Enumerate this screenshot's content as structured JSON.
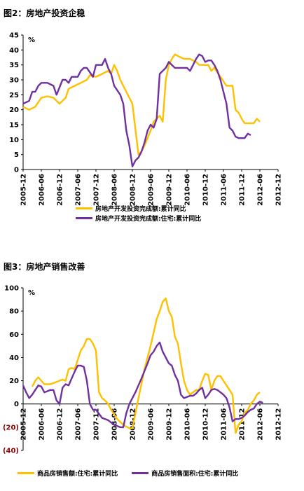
{
  "chart_data": [
    {
      "type": "line",
      "title": "图2：房地产投资企稳",
      "unit": "%",
      "ylim": [
        0,
        45
      ],
      "yticks": [
        "0",
        "5",
        "10",
        "15",
        "20",
        "25",
        "30",
        "35",
        "40",
        "45"
      ],
      "xticks": [
        "2005-12",
        "2006-06",
        "2006-12",
        "2007-06",
        "2007-12",
        "2008-06",
        "2008-12",
        "2009-06",
        "2009-12",
        "2010-06",
        "2010-12",
        "2011-06",
        "2011-12",
        "2012-06",
        "2012-12"
      ],
      "x_range": [
        0,
        84
      ],
      "legend_placement": "bottom",
      "series": [
        {
          "name": "房地产开发投资完成额:累计同比",
          "color": "#FFC000",
          "points": [
            [
              0,
              21
            ],
            [
              2,
              20
            ],
            [
              4,
              21
            ],
            [
              6,
              24
            ],
            [
              8,
              24.5
            ],
            [
              10,
              24
            ],
            [
              12,
              22
            ],
            [
              14,
              24
            ],
            [
              15,
              27
            ],
            [
              17,
              28
            ],
            [
              19,
              29
            ],
            [
              21,
              30
            ],
            [
              22,
              31.5
            ],
            [
              24,
              31
            ],
            [
              26,
              32
            ],
            [
              28,
              33
            ],
            [
              29,
              32
            ],
            [
              30,
              35
            ],
            [
              31,
              33
            ],
            [
              32,
              30
            ],
            [
              34,
              26
            ],
            [
              35,
              24
            ],
            [
              36,
              22
            ],
            [
              38,
              5
            ],
            [
              39,
              6
            ],
            [
              40,
              8
            ],
            [
              42,
              13
            ],
            [
              43,
              16
            ],
            [
              45,
              18
            ],
            [
              46,
              16
            ],
            [
              47,
              30
            ],
            [
              48,
              35
            ],
            [
              49,
              37
            ],
            [
              50,
              38.5
            ],
            [
              51,
              38
            ],
            [
              53,
              37
            ],
            [
              55,
              37
            ],
            [
              57,
              36
            ],
            [
              58,
              35
            ],
            [
              59,
              35
            ],
            [
              61,
              35
            ],
            [
              62,
              33
            ],
            [
              63,
              34
            ],
            [
              65,
              31
            ],
            [
              67,
              28
            ],
            [
              68,
              28
            ],
            [
              69,
              28
            ],
            [
              70,
              20
            ],
            [
              71,
              19
            ],
            [
              72,
              17
            ],
            [
              73,
              15.5
            ],
            [
              75,
              15.5
            ],
            [
              76,
              15.5
            ],
            [
              77,
              17
            ],
            [
              78,
              16
            ]
          ]
        },
        {
          "name": "房地产开发投资完成额:住宅:累计同比",
          "color": "#7030A0",
          "points": [
            [
              0,
              22
            ],
            [
              2,
              23
            ],
            [
              3,
              26
            ],
            [
              4,
              26
            ],
            [
              5,
              28
            ],
            [
              6,
              29
            ],
            [
              8,
              29
            ],
            [
              10,
              28
            ],
            [
              11,
              25
            ],
            [
              13,
              30
            ],
            [
              14,
              30
            ],
            [
              15,
              29
            ],
            [
              16,
              31
            ],
            [
              18,
              31
            ],
            [
              19,
              33
            ],
            [
              20,
              34
            ],
            [
              21,
              34
            ],
            [
              23,
              31
            ],
            [
              24,
              35
            ],
            [
              26,
              35
            ],
            [
              27,
              37
            ],
            [
              28,
              34
            ],
            [
              29,
              32
            ],
            [
              30,
              28
            ],
            [
              32,
              25
            ],
            [
              33,
              22
            ],
            [
              34,
              13
            ],
            [
              35,
              8
            ],
            [
              36,
              1
            ],
            [
              37,
              3
            ],
            [
              38,
              4
            ],
            [
              39,
              6
            ],
            [
              40,
              9
            ],
            [
              41,
              13
            ],
            [
              42,
              15
            ],
            [
              43,
              14
            ],
            [
              44,
              17
            ],
            [
              45,
              32
            ],
            [
              46,
              33
            ],
            [
              47,
              34
            ],
            [
              48,
              36
            ],
            [
              49,
              35
            ],
            [
              50,
              34
            ],
            [
              52,
              34
            ],
            [
              54,
              34
            ],
            [
              55,
              33
            ],
            [
              56,
              35
            ],
            [
              57,
              37
            ],
            [
              58,
              38.5
            ],
            [
              59,
              38
            ],
            [
              60,
              36
            ],
            [
              61,
              36.5
            ],
            [
              62,
              36.5
            ],
            [
              63,
              35
            ],
            [
              64,
              33
            ],
            [
              65,
              30
            ],
            [
              66,
              26
            ],
            [
              67,
              22
            ],
            [
              68,
              14
            ],
            [
              69,
              13
            ],
            [
              70,
              11
            ],
            [
              71,
              10.5
            ],
            [
              72,
              10.5
            ],
            [
              73,
              10.5
            ],
            [
              74,
              12
            ],
            [
              75,
              11.5
            ]
          ]
        }
      ]
    },
    {
      "type": "line",
      "title": "图3：房地产销售改善",
      "unit": "%",
      "ylim": [
        -40,
        100
      ],
      "yticks": [
        "(40)",
        "(20)",
        "0",
        "20",
        "40",
        "60",
        "80",
        "100"
      ],
      "xticks": [
        "2005-12",
        "2006-06",
        "2006-12",
        "2007-06",
        "2007-12",
        "2008-06",
        "2008-12",
        "2009-06",
        "2009-12",
        "2010-06",
        "2010-12",
        "2011-06",
        "2011-12",
        "2012-06",
        "2012-12"
      ],
      "x_range": [
        0,
        84
      ],
      "legend_placement": "bottom",
      "series": [
        {
          "name": "商品房销售额:住宅:累计同比",
          "color": "#FFC000",
          "points": [
            [
              3,
              15
            ],
            [
              4,
              20
            ],
            [
              5,
              23
            ],
            [
              6,
              20
            ],
            [
              7,
              17
            ],
            [
              9,
              17
            ],
            [
              11,
              19
            ],
            [
              13,
              21
            ],
            [
              14,
              20
            ],
            [
              15,
              30
            ],
            [
              16,
              31
            ],
            [
              17,
              30
            ],
            [
              18,
              38
            ],
            [
              19,
              46
            ],
            [
              20,
              50
            ],
            [
              21,
              56
            ],
            [
              22,
              56
            ],
            [
              23,
              52
            ],
            [
              24,
              46
            ],
            [
              25,
              10
            ],
            [
              26,
              5
            ],
            [
              27,
              3
            ],
            [
              28,
              0
            ],
            [
              29,
              -5
            ],
            [
              31,
              -13
            ],
            [
              33,
              -18
            ],
            [
              35,
              -21
            ],
            [
              36,
              -21
            ],
            [
              38,
              5
            ],
            [
              40,
              30
            ],
            [
              42,
              50
            ],
            [
              44,
              73
            ],
            [
              45,
              80
            ],
            [
              46,
              88
            ],
            [
              47,
              91
            ],
            [
              48,
              80
            ],
            [
              49,
              75
            ],
            [
              50,
              58
            ],
            [
              51,
              52
            ],
            [
              52,
              35
            ],
            [
              53,
              20
            ],
            [
              54,
              12
            ],
            [
              55,
              8
            ],
            [
              56,
              10
            ],
            [
              57,
              12
            ],
            [
              58,
              12
            ],
            [
              59,
              20
            ],
            [
              60,
              26
            ],
            [
              61,
              25
            ],
            [
              62,
              12
            ],
            [
              63,
              20
            ],
            [
              64,
              24
            ],
            [
              65,
              24
            ],
            [
              66,
              20
            ],
            [
              67,
              16
            ],
            [
              68,
              12
            ],
            [
              69,
              8
            ],
            [
              70,
              -25
            ],
            [
              71,
              -18
            ],
            [
              72,
              -15
            ],
            [
              73,
              -8
            ],
            [
              74,
              -5
            ],
            [
              75,
              0
            ],
            [
              76,
              3
            ],
            [
              77,
              8
            ],
            [
              78,
              10
            ]
          ]
        },
        {
          "name": "商品房销售面积:住宅:累计同比",
          "color": "#7030A0",
          "points": [
            [
              0,
              16
            ],
            [
              1,
              10
            ],
            [
              2,
              5
            ],
            [
              3,
              8
            ],
            [
              4,
              12
            ],
            [
              5,
              16
            ],
            [
              6,
              15
            ],
            [
              7,
              10
            ],
            [
              8,
              11
            ],
            [
              9,
              12
            ],
            [
              10,
              12
            ],
            [
              11,
              3
            ],
            [
              12,
              0
            ],
            [
              13,
              14
            ],
            [
              14,
              17
            ],
            [
              15,
              16
            ],
            [
              16,
              22
            ],
            [
              17,
              28
            ],
            [
              18,
              33
            ],
            [
              19,
              33
            ],
            [
              20,
              32
            ],
            [
              21,
              20
            ],
            [
              22,
              0
            ],
            [
              23,
              -5
            ],
            [
              24,
              -5
            ],
            [
              26,
              -12
            ],
            [
              28,
              -14
            ],
            [
              30,
              -18
            ],
            [
              32,
              -20
            ],
            [
              33,
              -20
            ],
            [
              34,
              -8
            ],
            [
              35,
              0
            ],
            [
              37,
              10
            ],
            [
              39,
              22
            ],
            [
              41,
              35
            ],
            [
              42,
              42
            ],
            [
              43,
              45
            ],
            [
              44,
              50
            ],
            [
              45,
              53
            ],
            [
              46,
              45
            ],
            [
              47,
              40
            ],
            [
              48,
              35
            ],
            [
              49,
              33
            ],
            [
              50,
              25
            ],
            [
              51,
              20
            ],
            [
              52,
              8
            ],
            [
              53,
              5
            ],
            [
              54,
              6
            ],
            [
              55,
              7
            ],
            [
              56,
              7
            ],
            [
              57,
              9
            ],
            [
              58,
              12
            ],
            [
              59,
              14
            ],
            [
              60,
              5
            ],
            [
              61,
              8
            ],
            [
              62,
              12
            ],
            [
              63,
              13
            ],
            [
              64,
              12
            ],
            [
              65,
              10
            ],
            [
              66,
              8
            ],
            [
              67,
              5
            ],
            [
              68,
              -3
            ],
            [
              69,
              -15
            ],
            [
              70,
              -13
            ],
            [
              71,
              -13
            ],
            [
              72,
              -12
            ],
            [
              73,
              -10
            ],
            [
              74,
              -7
            ],
            [
              75,
              -5
            ],
            [
              76,
              -4
            ],
            [
              77,
              0
            ],
            [
              78,
              2
            ],
            [
              79,
              1
            ]
          ]
        }
      ]
    }
  ]
}
